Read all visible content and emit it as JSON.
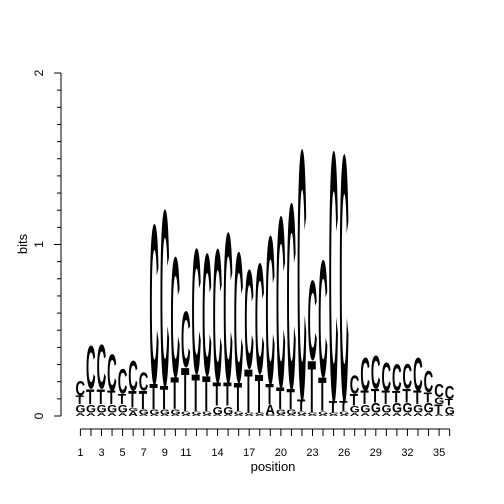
{
  "chart_data": {
    "type": "sequence-logo",
    "xlabel": "position",
    "ylabel": "bits",
    "ylim": [
      0,
      2
    ],
    "yticks": [
      0,
      1,
      2
    ],
    "xticks": [
      1,
      3,
      5,
      7,
      9,
      11,
      14,
      17,
      20,
      23,
      26,
      29,
      32,
      35
    ],
    "letter_colors": {
      "A": "#00a000",
      "C": "#2a00cc",
      "G": "#f0a000",
      "T": "#cc0000"
    },
    "positions": [
      {
        "pos": 1,
        "letters": [
          {
            "l": "A",
            "v": 0.02
          },
          {
            "l": "G",
            "v": 0.05
          },
          {
            "l": "T",
            "v": 0.05
          },
          {
            "l": "C",
            "v": 0.09
          }
        ]
      },
      {
        "pos": 2,
        "letters": [
          {
            "l": "A",
            "v": 0.02
          },
          {
            "l": "G",
            "v": 0.05
          },
          {
            "l": "T",
            "v": 0.09
          },
          {
            "l": "C",
            "v": 0.26
          }
        ]
      },
      {
        "pos": 3,
        "letters": [
          {
            "l": "A",
            "v": 0.02
          },
          {
            "l": "G",
            "v": 0.05
          },
          {
            "l": "T",
            "v": 0.09
          },
          {
            "l": "C",
            "v": 0.27
          }
        ]
      },
      {
        "pos": 4,
        "letters": [
          {
            "l": "A",
            "v": 0.02
          },
          {
            "l": "G",
            "v": 0.05
          },
          {
            "l": "T",
            "v": 0.08
          },
          {
            "l": "C",
            "v": 0.22
          }
        ]
      },
      {
        "pos": 5,
        "letters": [
          {
            "l": "A",
            "v": 0.02
          },
          {
            "l": "G",
            "v": 0.05
          },
          {
            "l": "T",
            "v": 0.06
          },
          {
            "l": "C",
            "v": 0.15
          }
        ]
      },
      {
        "pos": 6,
        "letters": [
          {
            "l": "A",
            "v": 0.03
          },
          {
            "l": "G",
            "v": 0.02
          },
          {
            "l": "T",
            "v": 0.1
          },
          {
            "l": "C",
            "v": 0.18
          }
        ]
      },
      {
        "pos": 7,
        "letters": [
          {
            "l": "A",
            "v": 0.01
          },
          {
            "l": "G",
            "v": 0.03
          },
          {
            "l": "T",
            "v": 0.11
          },
          {
            "l": "C",
            "v": 0.11
          }
        ]
      },
      {
        "pos": 8,
        "letters": [
          {
            "l": "A",
            "v": 0.01
          },
          {
            "l": "G",
            "v": 0.03
          },
          {
            "l": "T",
            "v": 0.15
          },
          {
            "l": "C",
            "v": 0.97
          }
        ]
      },
      {
        "pos": 9,
        "letters": [
          {
            "l": "A",
            "v": 0.01
          },
          {
            "l": "G",
            "v": 0.03
          },
          {
            "l": "T",
            "v": 0.14
          },
          {
            "l": "C",
            "v": 1.07
          }
        ]
      },
      {
        "pos": 10,
        "letters": [
          {
            "l": "A",
            "v": 0.01
          },
          {
            "l": "G",
            "v": 0.03
          },
          {
            "l": "T",
            "v": 0.19
          },
          {
            "l": "C",
            "v": 0.73
          }
        ]
      },
      {
        "pos": 11,
        "letters": [
          {
            "l": "A",
            "v": 0.01
          },
          {
            "l": "G",
            "v": 0.02
          },
          {
            "l": "T",
            "v": 0.26
          },
          {
            "l": "C",
            "v": 0.34
          }
        ]
      },
      {
        "pos": 12,
        "letters": [
          {
            "l": "A",
            "v": 0.01
          },
          {
            "l": "G",
            "v": 0.02
          },
          {
            "l": "T",
            "v": 0.22
          },
          {
            "l": "C",
            "v": 0.76
          }
        ]
      },
      {
        "pos": 13,
        "letters": [
          {
            "l": "A",
            "v": 0.01
          },
          {
            "l": "G",
            "v": 0.02
          },
          {
            "l": "T",
            "v": 0.21
          },
          {
            "l": "C",
            "v": 0.74
          }
        ]
      },
      {
        "pos": 14,
        "letters": [
          {
            "l": "A",
            "v": 0.01
          },
          {
            "l": "G",
            "v": 0.05
          },
          {
            "l": "T",
            "v": 0.14
          },
          {
            "l": "C",
            "v": 0.81
          }
        ]
      },
      {
        "pos": 15,
        "letters": [
          {
            "l": "A",
            "v": 0.01
          },
          {
            "l": "G",
            "v": 0.05
          },
          {
            "l": "T",
            "v": 0.14
          },
          {
            "l": "C",
            "v": 0.91
          }
        ]
      },
      {
        "pos": 16,
        "letters": [
          {
            "l": "A",
            "v": 0.01
          },
          {
            "l": "G",
            "v": 0.02
          },
          {
            "l": "T",
            "v": 0.17
          },
          {
            "l": "C",
            "v": 0.79
          }
        ]
      },
      {
        "pos": 17,
        "letters": [
          {
            "l": "A",
            "v": 0.01
          },
          {
            "l": "G",
            "v": 0.01
          },
          {
            "l": "T",
            "v": 0.26
          },
          {
            "l": "C",
            "v": 0.6
          }
        ]
      },
      {
        "pos": 18,
        "letters": [
          {
            "l": "A",
            "v": 0.01
          },
          {
            "l": "G",
            "v": 0.01
          },
          {
            "l": "T",
            "v": 0.23
          },
          {
            "l": "C",
            "v": 0.67
          }
        ]
      },
      {
        "pos": 19,
        "letters": [
          {
            "l": "G",
            "v": 0.01
          },
          {
            "l": "A",
            "v": 0.06
          },
          {
            "l": "T",
            "v": 0.12
          },
          {
            "l": "C",
            "v": 0.9
          }
        ]
      },
      {
        "pos": 20,
        "letters": [
          {
            "l": "A",
            "v": 0.01
          },
          {
            "l": "G",
            "v": 0.03
          },
          {
            "l": "T",
            "v": 0.13
          },
          {
            "l": "C",
            "v": 1.04
          }
        ]
      },
      {
        "pos": 21,
        "letters": [
          {
            "l": "A",
            "v": 0.01
          },
          {
            "l": "G",
            "v": 0.03
          },
          {
            "l": "T",
            "v": 0.12
          },
          {
            "l": "C",
            "v": 1.13
          }
        ]
      },
      {
        "pos": 22,
        "letters": [
          {
            "l": "A",
            "v": 0.01
          },
          {
            "l": "G",
            "v": 0.02
          },
          {
            "l": "T",
            "v": 0.07
          },
          {
            "l": "C",
            "v": 1.52
          }
        ]
      },
      {
        "pos": 23,
        "letters": [
          {
            "l": "A",
            "v": 0.01
          },
          {
            "l": "G",
            "v": 0.01
          },
          {
            "l": "T",
            "v": 0.31
          },
          {
            "l": "C",
            "v": 0.48
          }
        ]
      },
      {
        "pos": 24,
        "letters": [
          {
            "l": "A",
            "v": 0.01
          },
          {
            "l": "G",
            "v": 0.02
          },
          {
            "l": "T",
            "v": 0.2
          },
          {
            "l": "C",
            "v": 0.71
          }
        ]
      },
      {
        "pos": 25,
        "letters": [
          {
            "l": "A",
            "v": 0.01
          },
          {
            "l": "G",
            "v": 0.01
          },
          {
            "l": "T",
            "v": 0.07
          },
          {
            "l": "C",
            "v": 1.52
          }
        ]
      },
      {
        "pos": 26,
        "letters": [
          {
            "l": "A",
            "v": 0.01
          },
          {
            "l": "G",
            "v": 0.02
          },
          {
            "l": "T",
            "v": 0.06
          },
          {
            "l": "C",
            "v": 1.5
          }
        ]
      },
      {
        "pos": 27,
        "letters": [
          {
            "l": "A",
            "v": 0.02
          },
          {
            "l": "G",
            "v": 0.04
          },
          {
            "l": "T",
            "v": 0.07
          },
          {
            "l": "C",
            "v": 0.11
          }
        ]
      },
      {
        "pos": 28,
        "letters": [
          {
            "l": "A",
            "v": 0.02
          },
          {
            "l": "G",
            "v": 0.05
          },
          {
            "l": "T",
            "v": 0.08
          },
          {
            "l": "C",
            "v": 0.2
          }
        ]
      },
      {
        "pos": 29,
        "letters": [
          {
            "l": "A",
            "v": 0.02
          },
          {
            "l": "G",
            "v": 0.06
          },
          {
            "l": "T",
            "v": 0.08
          },
          {
            "l": "C",
            "v": 0.2
          }
        ]
      },
      {
        "pos": 30,
        "letters": [
          {
            "l": "A",
            "v": 0.02
          },
          {
            "l": "G",
            "v": 0.05
          },
          {
            "l": "T",
            "v": 0.08
          },
          {
            "l": "C",
            "v": 0.17
          }
        ]
      },
      {
        "pos": 31,
        "letters": [
          {
            "l": "A",
            "v": 0.02
          },
          {
            "l": "G",
            "v": 0.06
          },
          {
            "l": "T",
            "v": 0.07
          },
          {
            "l": "C",
            "v": 0.16
          }
        ]
      },
      {
        "pos": 32,
        "letters": [
          {
            "l": "A",
            "v": 0.02
          },
          {
            "l": "G",
            "v": 0.06
          },
          {
            "l": "T",
            "v": 0.08
          },
          {
            "l": "C",
            "v": 0.15
          }
        ]
      },
      {
        "pos": 33,
        "letters": [
          {
            "l": "A",
            "v": 0.02
          },
          {
            "l": "G",
            "v": 0.05
          },
          {
            "l": "T",
            "v": 0.08
          },
          {
            "l": "C",
            "v": 0.2
          }
        ]
      },
      {
        "pos": 34,
        "letters": [
          {
            "l": "A",
            "v": 0.02
          },
          {
            "l": "G",
            "v": 0.06
          },
          {
            "l": "T",
            "v": 0.06
          },
          {
            "l": "C",
            "v": 0.13
          }
        ]
      },
      {
        "pos": 35,
        "letters": [
          {
            "l": "A",
            "v": 0.01
          },
          {
            "l": "T",
            "v": 0.06
          },
          {
            "l": "G",
            "v": 0.04
          },
          {
            "l": "C",
            "v": 0.08
          }
        ]
      },
      {
        "pos": 36,
        "letters": [
          {
            "l": "A",
            "v": 0.01
          },
          {
            "l": "G",
            "v": 0.05
          },
          {
            "l": "T",
            "v": 0.04
          },
          {
            "l": "C",
            "v": 0.08
          }
        ]
      }
    ]
  }
}
